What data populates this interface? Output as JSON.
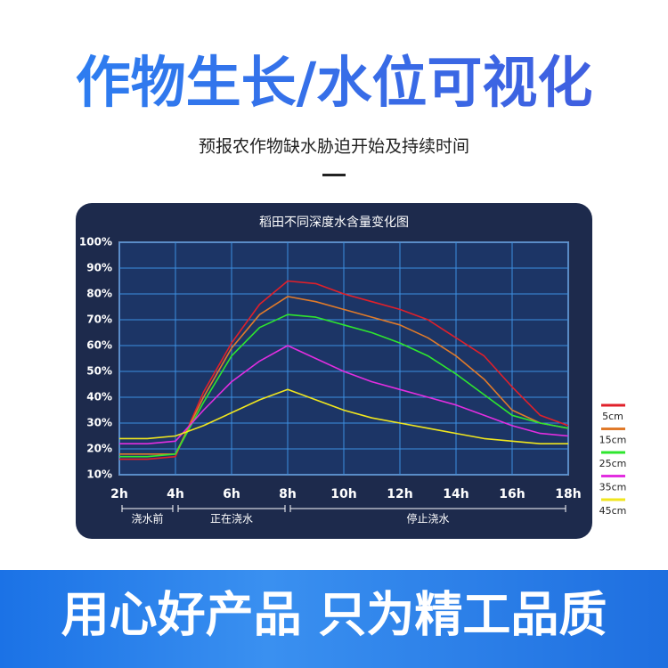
{
  "header": {
    "title": "作物生长/水位可视化",
    "subtitle": "预报农作物缺水胁迫开始及持续时间"
  },
  "footer": {
    "slogan": "用心好产品 只为精工品质"
  },
  "chart_data": {
    "type": "line",
    "title": "稻田不同深度水含量变化图",
    "x": [
      2,
      3,
      4,
      5,
      6,
      7,
      8,
      9,
      10,
      11,
      12,
      13,
      14,
      15,
      16,
      17,
      18
    ],
    "xlim": [
      2,
      18
    ],
    "xticks": [
      {
        "value": 2,
        "label": "2h"
      },
      {
        "value": 4,
        "label": "4h"
      },
      {
        "value": 6,
        "label": "6h"
      },
      {
        "value": 8,
        "label": "8h"
      },
      {
        "value": 10,
        "label": "10h"
      },
      {
        "value": 12,
        "label": "12h"
      },
      {
        "value": 14,
        "label": "14h"
      },
      {
        "value": 16,
        "label": "16h"
      },
      {
        "value": 18,
        "label": "18h"
      }
    ],
    "ylim": [
      10,
      100
    ],
    "yticks": [
      {
        "value": 10,
        "label": "10%"
      },
      {
        "value": 20,
        "label": "20%"
      },
      {
        "value": 30,
        "label": "30%"
      },
      {
        "value": 40,
        "label": "40%"
      },
      {
        "value": 50,
        "label": "50%"
      },
      {
        "value": 60,
        "label": "60%"
      },
      {
        "value": 70,
        "label": "70%"
      },
      {
        "value": 80,
        "label": "80%"
      },
      {
        "value": 90,
        "label": "90%"
      },
      {
        "value": 100,
        "label": "100%"
      }
    ],
    "grid": true,
    "legend": "right",
    "phases": [
      {
        "label": "浇水前",
        "start": 2,
        "end": 4
      },
      {
        "label": "正在浇水",
        "start": 4,
        "end": 8
      },
      {
        "label": "停止浇水",
        "start": 8,
        "end": 18
      }
    ],
    "series": [
      {
        "name": "5cm",
        "color": "#e0202a",
        "values": [
          16,
          16,
          17,
          42,
          61,
          76,
          85,
          84,
          80,
          77,
          74,
          70,
          63,
          56,
          44,
          33,
          29
        ]
      },
      {
        "name": "15cm",
        "color": "#e07a2a",
        "values": [
          18,
          18,
          18,
          40,
          59,
          72,
          79,
          77,
          74,
          71,
          68,
          63,
          56,
          47,
          35,
          30,
          28
        ]
      },
      {
        "name": "25cm",
        "color": "#2ee62e",
        "values": [
          17,
          17,
          18,
          38,
          56,
          67,
          72,
          71,
          68,
          65,
          61,
          56,
          49,
          41,
          33,
          30,
          28
        ]
      },
      {
        "name": "35cm",
        "color": "#e22ee0",
        "values": [
          22,
          22,
          23,
          35,
          46,
          54,
          60,
          55,
          50,
          46,
          43,
          40,
          37,
          33,
          29,
          26,
          25
        ]
      },
      {
        "name": "45cm",
        "color": "#f0e61e",
        "values": [
          24,
          24,
          25,
          29,
          34,
          39,
          43,
          39,
          35,
          32,
          30,
          28,
          26,
          24,
          23,
          22,
          22
        ]
      }
    ]
  }
}
